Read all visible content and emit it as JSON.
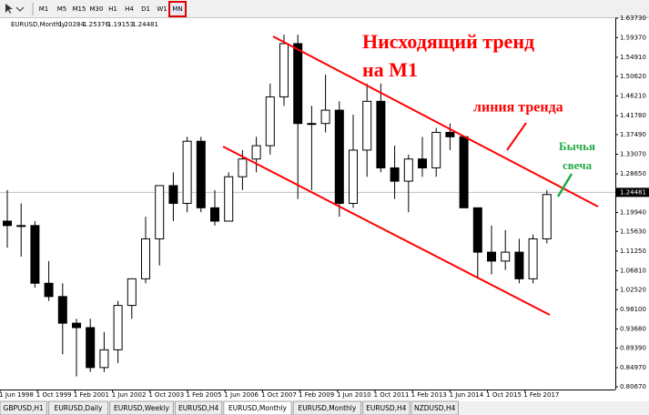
{
  "toolbar": {
    "timeframes": [
      {
        "label": "M1",
        "selected": false
      },
      {
        "label": "M5",
        "selected": false
      },
      {
        "label": "M15",
        "selected": false
      },
      {
        "label": "M30",
        "selected": false
      },
      {
        "label": "H1",
        "selected": false
      },
      {
        "label": "H4",
        "selected": false
      },
      {
        "label": "D1",
        "selected": false
      },
      {
        "label": "W1",
        "selected": false
      },
      {
        "label": "MN",
        "selected": true
      }
    ]
  },
  "chart_data": {
    "type": "candlestick",
    "symbol": "EURUSD,Monthly",
    "ohlc_info": {
      "open": 1.20284,
      "high": 1.25376,
      "low": 1.19153,
      "close": 1.24481
    },
    "ylim": [
      0.8005,
      1.6414
    ],
    "yticks": [
      {
        "value": 1.6373,
        "label": "1.63730"
      },
      {
        "value": 1.5937,
        "label": "1.59370"
      },
      {
        "value": 1.5491,
        "label": "1.54910"
      },
      {
        "value": 1.5062,
        "label": "1.50620"
      },
      {
        "value": 1.4621,
        "label": "1.46210"
      },
      {
        "value": 1.4178,
        "label": "1.41780"
      },
      {
        "value": 1.3749,
        "label": "1.37490"
      },
      {
        "value": 1.3307,
        "label": "1.33070"
      },
      {
        "value": 1.2865,
        "label": "1.28650"
      },
      {
        "value": 1.1994,
        "label": "1.19940"
      },
      {
        "value": 1.1563,
        "label": "1.15630"
      },
      {
        "value": 1.1125,
        "label": "1.11250"
      },
      {
        "value": 1.0681,
        "label": "1.06810"
      },
      {
        "value": 1.0252,
        "label": "1.02520"
      },
      {
        "value": 0.981,
        "label": "0.98100"
      },
      {
        "value": 0.9368,
        "label": "0.93680"
      },
      {
        "value": 0.8939,
        "label": "0.89390"
      },
      {
        "value": 0.8497,
        "label": "0.84970"
      },
      {
        "value": 0.8067,
        "label": "0.80670"
      }
    ],
    "x_labels": [
      "1 Jun 1998",
      "1 Oct 1999",
      "1 Feb 2001",
      "1 Jun 2002",
      "1 Oct 2003",
      "1 Feb 2005",
      "1 Jun 2006",
      "1 Oct 2007",
      "1 Feb 2009",
      "1 Jun 2010",
      "1 Oct 2011",
      "1 Feb 2013",
      "1 Jun 2014",
      "1 Oct 2015",
      "1 Feb 2017"
    ],
    "colors": {
      "bull": "#ffffff",
      "bear": "#000000",
      "outline": "#000000",
      "trend_lines": "#ff0000"
    },
    "candles": [
      {
        "open": 1.18,
        "high": 1.25,
        "low": 1.12,
        "close": 1.17
      },
      {
        "open": 1.17,
        "high": 1.22,
        "low": 1.1,
        "close": 1.17
      },
      {
        "open": 1.17,
        "high": 1.18,
        "low": 1.03,
        "close": 1.04
      },
      {
        "open": 1.04,
        "high": 1.09,
        "low": 1.0,
        "close": 1.01
      },
      {
        "open": 1.01,
        "high": 1.04,
        "low": 0.88,
        "close": 0.95
      },
      {
        "open": 0.95,
        "high": 0.96,
        "low": 0.83,
        "close": 0.94
      },
      {
        "open": 0.94,
        "high": 0.96,
        "low": 0.84,
        "close": 0.85
      },
      {
        "open": 0.85,
        "high": 0.93,
        "low": 0.84,
        "close": 0.89
      },
      {
        "open": 0.89,
        "high": 1.0,
        "low": 0.86,
        "close": 0.99
      },
      {
        "open": 0.99,
        "high": 1.05,
        "low": 0.96,
        "close": 1.05
      },
      {
        "open": 1.05,
        "high": 1.19,
        "low": 1.04,
        "close": 1.14
      },
      {
        "open": 1.14,
        "high": 1.26,
        "low": 1.08,
        "close": 1.26
      },
      {
        "open": 1.26,
        "high": 1.29,
        "low": 1.18,
        "close": 1.22
      },
      {
        "open": 1.22,
        "high": 1.37,
        "low": 1.2,
        "close": 1.36
      },
      {
        "open": 1.36,
        "high": 1.37,
        "low": 1.2,
        "close": 1.21
      },
      {
        "open": 1.21,
        "high": 1.25,
        "low": 1.17,
        "close": 1.18
      },
      {
        "open": 1.18,
        "high": 1.29,
        "low": 1.18,
        "close": 1.28
      },
      {
        "open": 1.28,
        "high": 1.34,
        "low": 1.25,
        "close": 1.32
      },
      {
        "open": 1.32,
        "high": 1.37,
        "low": 1.29,
        "close": 1.35
      },
      {
        "open": 1.35,
        "high": 1.49,
        "low": 1.33,
        "close": 1.46
      },
      {
        "open": 1.46,
        "high": 1.6,
        "low": 1.44,
        "close": 1.58
      },
      {
        "open": 1.58,
        "high": 1.6,
        "low": 1.23,
        "close": 1.4
      },
      {
        "open": 1.4,
        "high": 1.44,
        "low": 1.25,
        "close": 1.4
      },
      {
        "open": 1.4,
        "high": 1.51,
        "low": 1.38,
        "close": 1.43
      },
      {
        "open": 1.43,
        "high": 1.45,
        "low": 1.19,
        "close": 1.22
      },
      {
        "open": 1.22,
        "high": 1.42,
        "low": 1.21,
        "close": 1.34
      },
      {
        "open": 1.34,
        "high": 1.49,
        "low": 1.28,
        "close": 1.45
      },
      {
        "open": 1.45,
        "high": 1.49,
        "low": 1.29,
        "close": 1.3
      },
      {
        "open": 1.3,
        "high": 1.35,
        "low": 1.23,
        "close": 1.27
      },
      {
        "open": 1.27,
        "high": 1.33,
        "low": 1.2,
        "close": 1.32
      },
      {
        "open": 1.32,
        "high": 1.37,
        "low": 1.28,
        "close": 1.3
      },
      {
        "open": 1.3,
        "high": 1.39,
        "low": 1.28,
        "close": 1.38
      },
      {
        "open": 1.38,
        "high": 1.4,
        "low": 1.34,
        "close": 1.37
      },
      {
        "open": 1.37,
        "high": 1.37,
        "low": 1.21,
        "close": 1.21
      },
      {
        "open": 1.21,
        "high": 1.21,
        "low": 1.05,
        "close": 1.11
      },
      {
        "open": 1.11,
        "high": 1.17,
        "low": 1.06,
        "close": 1.09
      },
      {
        "open": 1.09,
        "high": 1.16,
        "low": 1.07,
        "close": 1.11
      },
      {
        "open": 1.11,
        "high": 1.14,
        "low": 1.04,
        "close": 1.05
      },
      {
        "open": 1.05,
        "high": 1.15,
        "low": 1.04,
        "close": 1.14
      },
      {
        "open": 1.14,
        "high": 1.25,
        "low": 1.13,
        "close": 1.24
      }
    ],
    "annotations": {
      "title_lines": [
        "Нисходящий тренд",
        "на М1"
      ],
      "trend_line_label": "линия тренда",
      "candle_label_lines": [
        "Бычья",
        "свеча"
      ]
    }
  },
  "tabs": [
    {
      "label": "GBPUSD,H1",
      "active": false
    },
    {
      "label": "EURUSD,Daily",
      "active": false
    },
    {
      "label": "EURUSD,Weekly",
      "active": false
    },
    {
      "label": "EURUSD,H4",
      "active": false
    },
    {
      "label": "EURUSD,Monthly",
      "active": true
    },
    {
      "label": "EURUSD,Monthly",
      "active": false
    },
    {
      "label": "EURUSD,H4",
      "active": false
    },
    {
      "label": "NZDUSD,H4",
      "active": false
    }
  ]
}
